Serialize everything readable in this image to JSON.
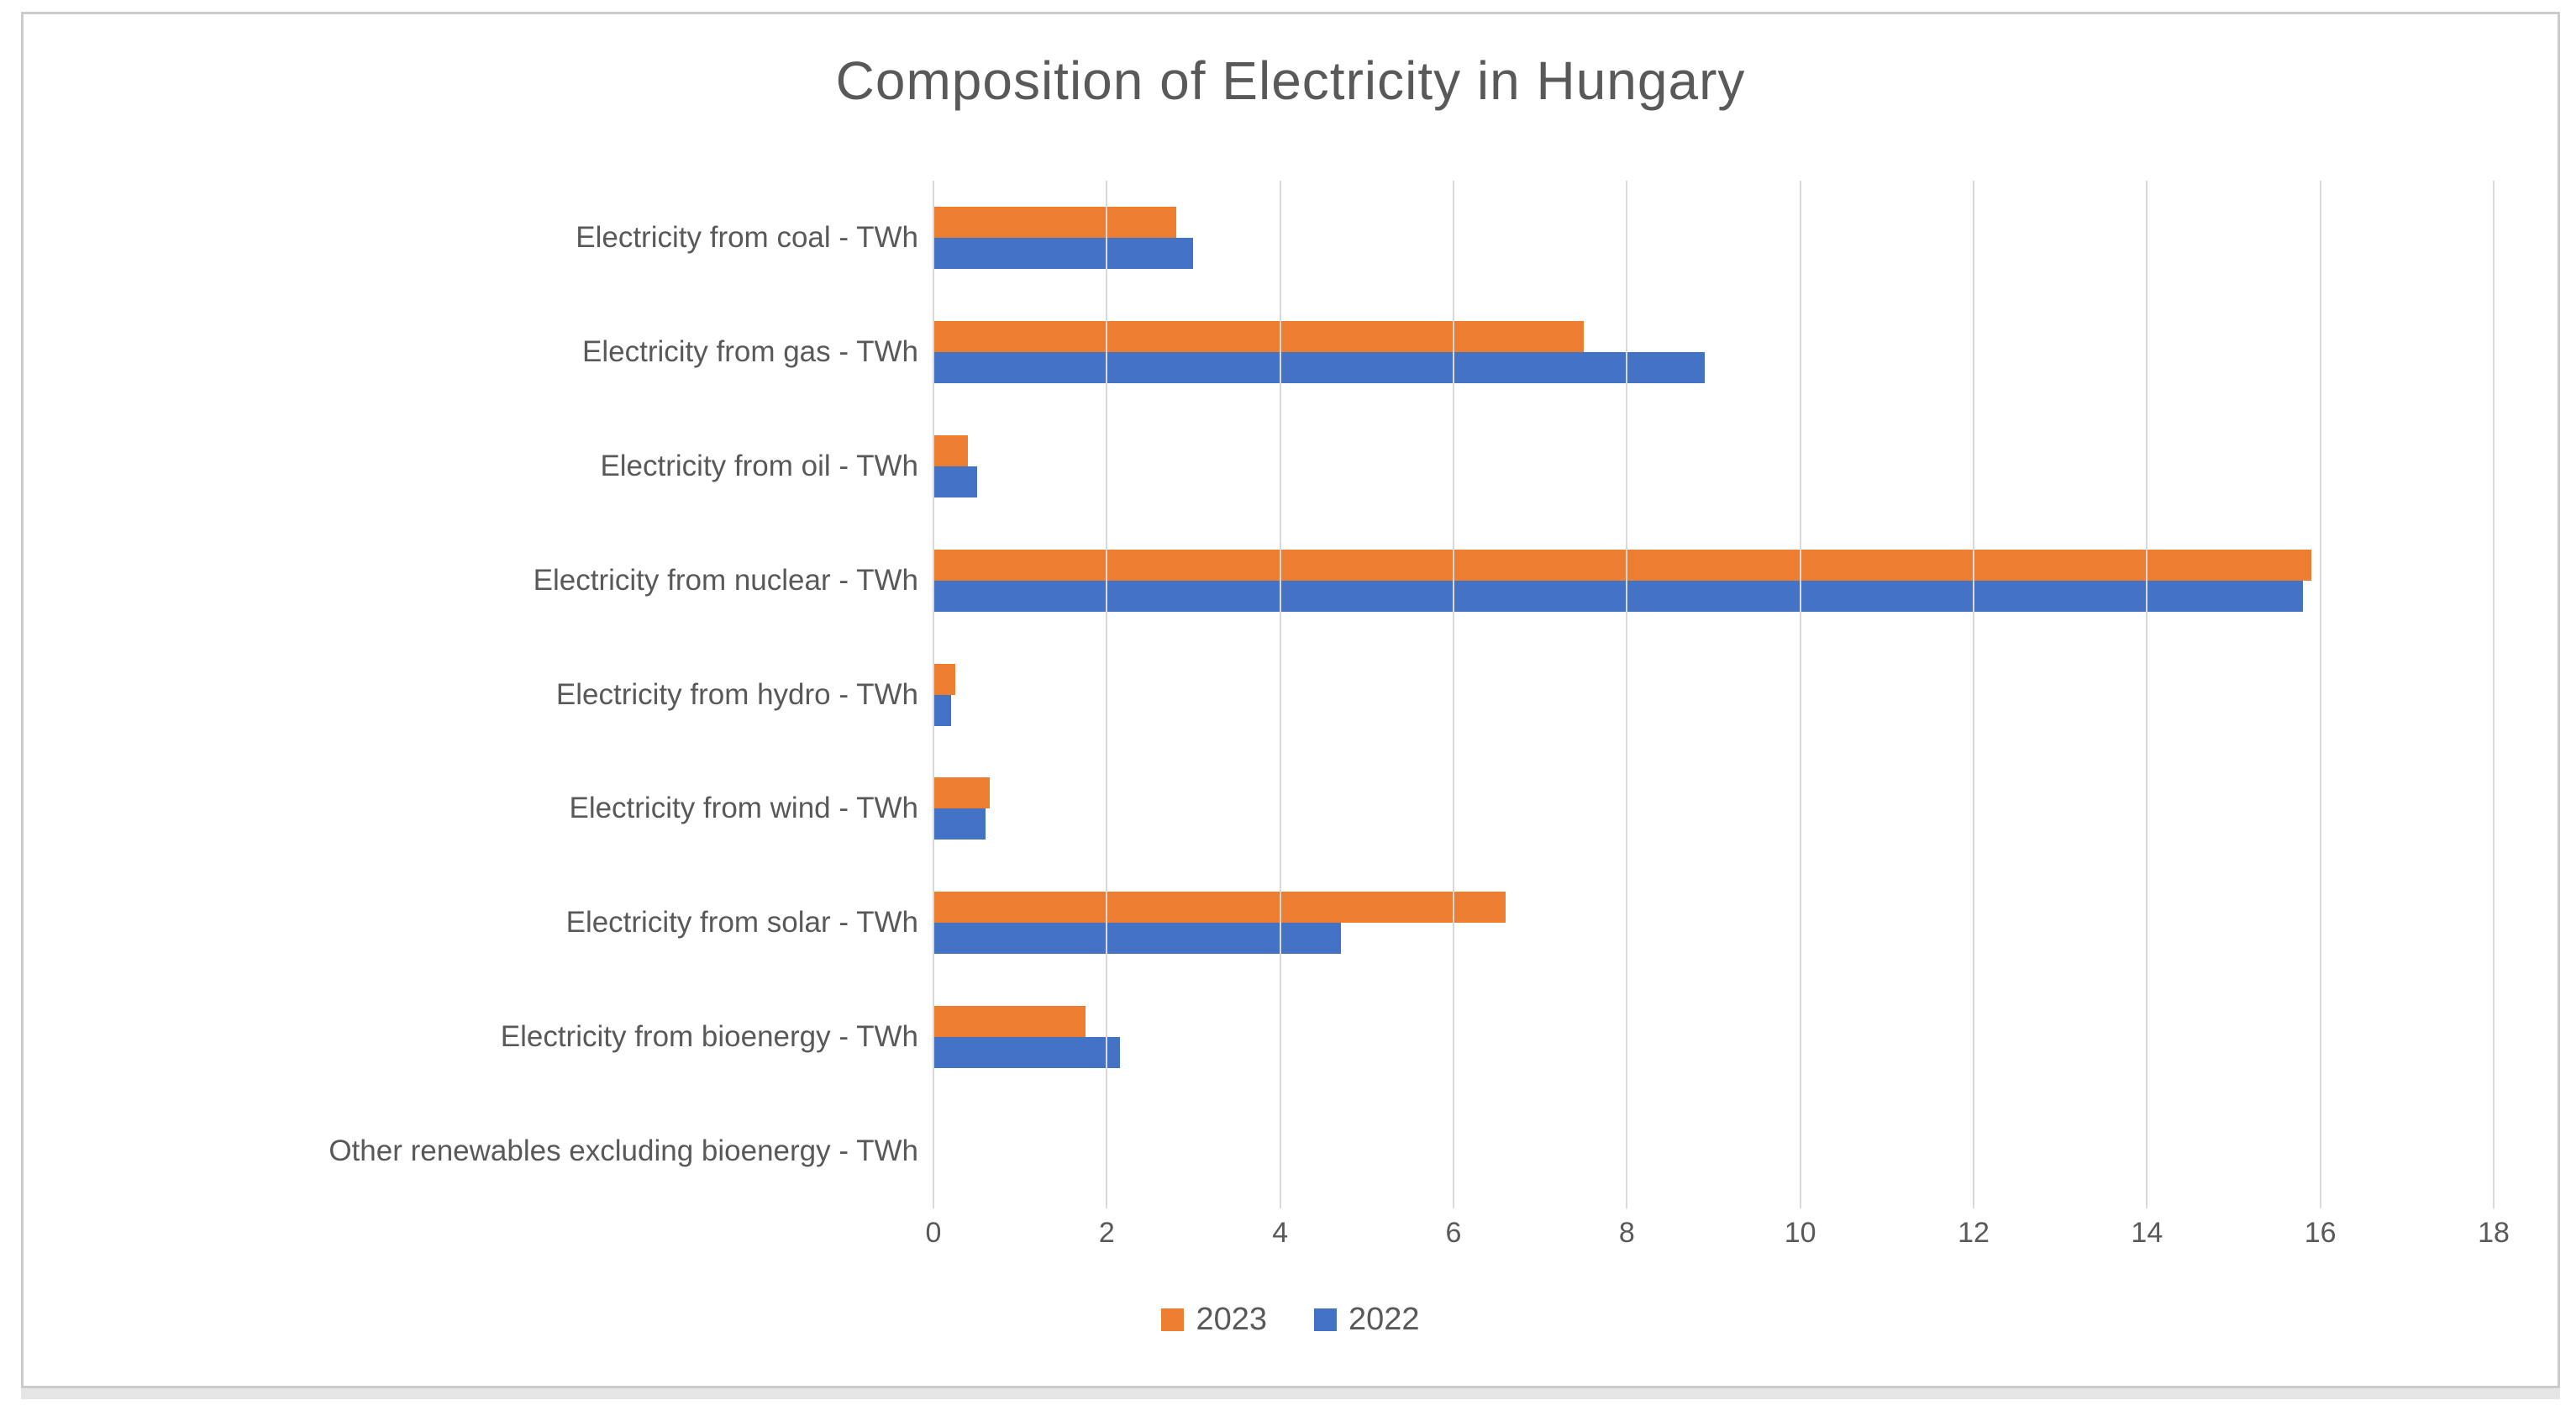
{
  "chart_data": {
    "type": "bar",
    "orientation": "horizontal",
    "title": "Composition of Electricity in Hungary",
    "categories": [
      "Electricity from coal - TWh",
      "Electricity from gas - TWh",
      "Electricity from oil - TWh",
      "Electricity from nuclear - TWh",
      "Electricity from hydro - TWh",
      "Electricity from wind - TWh",
      "Electricity from solar - TWh",
      "Electricity from bioenergy - TWh",
      "Other renewables excluding bioenergy - TWh"
    ],
    "series": [
      {
        "name": "2023",
        "color": "#ED7D31",
        "values": [
          2.8,
          7.5,
          0.4,
          15.9,
          0.25,
          0.65,
          6.6,
          1.75,
          0
        ]
      },
      {
        "name": "2022",
        "color": "#4472C4",
        "values": [
          3.0,
          8.9,
          0.5,
          15.8,
          0.2,
          0.6,
          4.7,
          2.15,
          0
        ]
      }
    ],
    "xlim": [
      0,
      18
    ],
    "xticks": [
      0,
      2,
      4,
      6,
      8,
      10,
      12,
      14,
      16,
      18
    ],
    "grid": "vertical",
    "gridline_color": "#D9D9D9",
    "text_color": "#595959",
    "legend_position": "bottom"
  }
}
